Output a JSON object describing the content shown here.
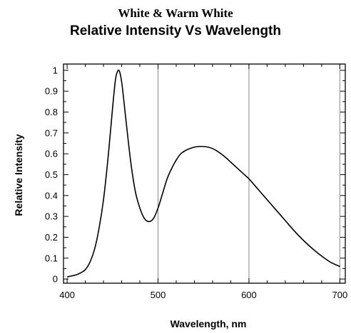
{
  "chart_data": {
    "type": "line",
    "title": "White & Warm White",
    "subtitle": "Relative Intensity Vs Wavelength",
    "xlabel": "Wavelength, nm",
    "ylabel": "Relative Intensity",
    "xlim": [
      396,
      706
    ],
    "ylim": [
      -0.02,
      1.03
    ],
    "grid": true,
    "xticks": [
      400,
      500,
      600,
      700
    ],
    "yticks": [
      0,
      0.1,
      0.2,
      0.3,
      0.4,
      0.5,
      0.6,
      0.7,
      0.8,
      0.9,
      1
    ],
    "ytick_labels": [
      "0",
      "0.1",
      "0.2",
      "0.3",
      "0.4",
      "0.5",
      "0.6",
      "0.7",
      "0.8",
      "0.9",
      "1"
    ],
    "xtick_labels": [
      "400",
      "500",
      "600",
      "700"
    ],
    "series": [
      {
        "color": "#000000",
        "x": [
          400,
          405,
          410,
          415,
          420,
          425,
          430,
          435,
          440,
          445,
          450,
          453,
          455,
          457,
          459,
          461,
          465,
          470,
          475,
          480,
          485,
          490,
          495,
          500,
          505,
          510,
          515,
          520,
          525,
          530,
          535,
          540,
          545,
          550,
          555,
          560,
          565,
          570,
          575,
          580,
          585,
          590,
          595,
          600,
          610,
          620,
          630,
          640,
          650,
          660,
          670,
          680,
          690,
          700
        ],
        "y": [
          0.01,
          0.015,
          0.02,
          0.03,
          0.045,
          0.08,
          0.14,
          0.24,
          0.38,
          0.58,
          0.82,
          0.95,
          0.99,
          1.0,
          0.97,
          0.91,
          0.75,
          0.56,
          0.42,
          0.34,
          0.29,
          0.275,
          0.29,
          0.34,
          0.41,
          0.48,
          0.53,
          0.57,
          0.6,
          0.615,
          0.625,
          0.632,
          0.635,
          0.635,
          0.632,
          0.625,
          0.613,
          0.598,
          0.58,
          0.56,
          0.54,
          0.52,
          0.5,
          0.48,
          0.43,
          0.38,
          0.33,
          0.28,
          0.23,
          0.185,
          0.145,
          0.11,
          0.08,
          0.06
        ]
      }
    ]
  }
}
